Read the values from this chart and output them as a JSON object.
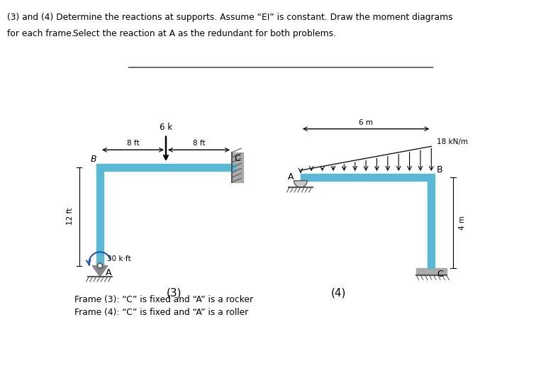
{
  "title_line1": "(3) and (4) Determine the reactions at supports. Assume “EI” is constant. Draw the moment diagrams",
  "title_line2_plain": "for each frame. ",
  "title_line2_underlined": "Select the reaction at A as the redundant for both problems.",
  "frame3_label": "(3)",
  "frame4_label": "(4)",
  "caption1": "Frame (3): “C” is fixed and “A” is a rocker",
  "caption2": "Frame (4): “C” is fixed and “A” is a roller",
  "beam_color": "#5bb8d4",
  "text_color": "#000000",
  "background": "#ffffff",
  "wall_color": "#aaaaaa",
  "ground_color": "#aaaaaa",
  "hatch_color": "#555555",
  "moment_arrow_color": "#2255aa"
}
